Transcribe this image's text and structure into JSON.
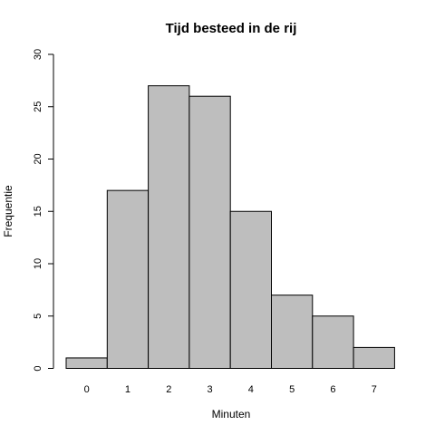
{
  "chart_data": {
    "type": "bar",
    "title": "Tijd besteed in de rij",
    "xlabel": "Minuten",
    "ylabel": "Frequentie",
    "categories": [
      "0",
      "1",
      "2",
      "3",
      "4",
      "5",
      "6",
      "7"
    ],
    "values": [
      1,
      17,
      27,
      26,
      15,
      7,
      5,
      2
    ],
    "ylim": [
      0,
      30
    ],
    "yticks": [
      "0",
      "5",
      "10",
      "15",
      "20",
      "25",
      "30"
    ],
    "grid": false,
    "bar_color": "#bebebe",
    "border_color": "#000000"
  }
}
